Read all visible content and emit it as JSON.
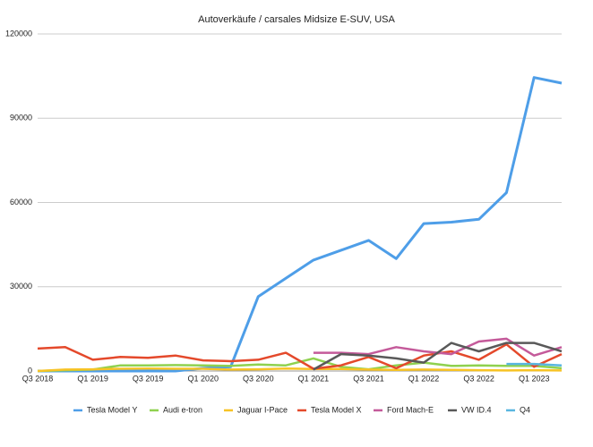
{
  "chart_data": {
    "type": "line",
    "title": "Autoverkäufe / carsales Midsize E-SUV, USA",
    "categories": [
      "Q3 2018",
      null,
      "Q1 2019",
      null,
      "Q3 2019",
      null,
      "Q1 2020",
      null,
      "Q3 2020",
      null,
      "Q1 2021",
      null,
      "Q3 2021",
      null,
      "Q1 2022",
      null,
      "Q3 2022",
      null,
      "Q1 2023",
      null
    ],
    "ylim": [
      0,
      120000
    ],
    "yticks": [
      0,
      30000,
      60000,
      90000,
      120000
    ],
    "grid": true,
    "legend": "bottom",
    "series": [
      {
        "name": "Tesla Model Y",
        "color": "#4e9ee8",
        "values": [
          0,
          0,
          0,
          0,
          0,
          0,
          1000,
          1500,
          26500,
          33000,
          39500,
          43000,
          46500,
          40000,
          52500,
          53000,
          54000,
          63500,
          104500,
          102500
        ]
      },
      {
        "name": "Audi e-tron",
        "color": "#8fd14f",
        "values": [
          0,
          300,
          500,
          2000,
          2000,
          2100,
          2000,
          1800,
          2300,
          2000,
          4500,
          1500,
          600,
          2000,
          3000,
          1800,
          2000,
          1800,
          1800,
          1000
        ]
      },
      {
        "name": "Jaguar I-Pace",
        "color": "#f7c325",
        "values": [
          0,
          500,
          600,
          800,
          900,
          800,
          800,
          500,
          600,
          900,
          700,
          700,
          500,
          400,
          500,
          400,
          300,
          200,
          300,
          200
        ]
      },
      {
        "name": "Tesla Model X",
        "color": "#e4492b",
        "values": [
          8000,
          8500,
          4000,
          5000,
          4700,
          5500,
          3800,
          3500,
          4000,
          6500,
          800,
          2000,
          5000,
          1000,
          5500,
          7000,
          4000,
          9500,
          1500,
          6000
        ]
      },
      {
        "name": "Ford Mach-E",
        "color": "#c45a9a",
        "values": [
          null,
          null,
          null,
          null,
          null,
          null,
          null,
          null,
          null,
          null,
          6500,
          6500,
          6000,
          8500,
          7000,
          6000,
          10500,
          11500,
          5500,
          8500
        ]
      },
      {
        "name": "VW ID.4",
        "color": "#595959",
        "values": [
          null,
          null,
          null,
          null,
          null,
          null,
          null,
          null,
          null,
          null,
          500,
          6000,
          5500,
          4500,
          3000,
          10000,
          7000,
          10000,
          10000,
          7000
        ]
      },
      {
        "name": "Q4",
        "color": "#59b6e0",
        "values": [
          null,
          null,
          null,
          null,
          null,
          null,
          null,
          null,
          null,
          null,
          null,
          null,
          null,
          null,
          null,
          null,
          null,
          2500,
          2500,
          2000
        ]
      }
    ]
  }
}
